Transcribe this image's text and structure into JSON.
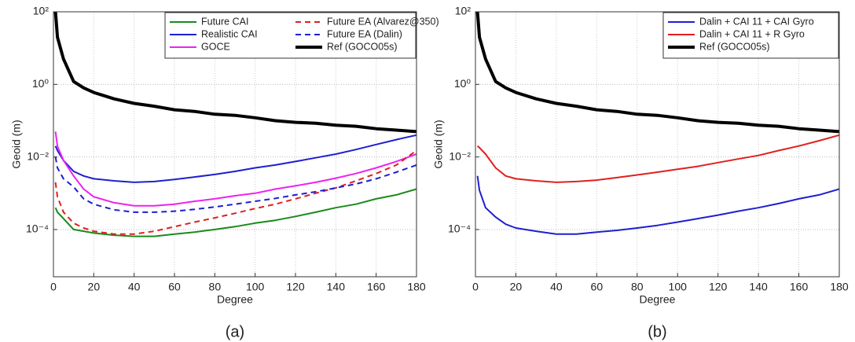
{
  "chart_data": [
    {
      "type": "line",
      "caption": "(a)",
      "xlabel": "Degree",
      "ylabel": "Geoid (m)",
      "log_y": true,
      "grid": true,
      "legend": "upper right",
      "legend_columns": 2,
      "x": [
        1,
        2,
        5,
        10,
        15,
        20,
        30,
        40,
        50,
        60,
        70,
        80,
        90,
        100,
        110,
        120,
        130,
        140,
        150,
        160,
        170,
        180
      ],
      "xlim": [
        0,
        180
      ],
      "xticks": [
        0,
        20,
        40,
        60,
        80,
        100,
        120,
        140,
        160,
        180
      ],
      "ylim": [
        5e-06,
        100
      ],
      "yticks": [
        {
          "value": 0.0001,
          "label": "10⁻⁴"
        },
        {
          "value": 0.01,
          "label": "10⁻²"
        },
        {
          "value": 1,
          "label": "10⁰"
        },
        {
          "value": 100,
          "label": "10²"
        }
      ],
      "series": [
        {
          "name": "Future CAI",
          "color": "#1a8a1a",
          "dashed": false,
          "linewidth": 2,
          "values": [
            0.0004,
            0.0003,
            0.0002,
            0.0001,
            9e-05,
            8e-05,
            7e-05,
            6.5e-05,
            6.5e-05,
            7.5e-05,
            8.5e-05,
            0.0001,
            0.00012,
            0.00015,
            0.00018,
            0.00023,
            0.0003,
            0.0004,
            0.0005,
            0.0007,
            0.0009,
            0.0013
          ]
        },
        {
          "name": "Realistic CAI",
          "color": "#1f1fd0",
          "dashed": false,
          "linewidth": 2,
          "values": [
            0.02,
            0.015,
            0.008,
            0.004,
            0.003,
            0.0025,
            0.0022,
            0.002,
            0.0021,
            0.0024,
            0.0028,
            0.0033,
            0.004,
            0.005,
            0.006,
            0.0075,
            0.0095,
            0.012,
            0.016,
            0.022,
            0.03,
            0.04
          ]
        },
        {
          "name": "GOCE",
          "color": "#ee22ee",
          "dashed": false,
          "linewidth": 2,
          "values": [
            0.05,
            0.02,
            0.008,
            0.003,
            0.0013,
            0.0008,
            0.00055,
            0.00045,
            0.00045,
            0.0005,
            0.0006,
            0.0007,
            0.00085,
            0.001,
            0.0013,
            0.0016,
            0.002,
            0.0026,
            0.0035,
            0.005,
            0.0075,
            0.012
          ]
        },
        {
          "name": "Future EA (Alvarez@350)",
          "color": "#e02020",
          "dashed": true,
          "linewidth": 2,
          "values": [
            0.002,
            0.0008,
            0.0003,
            0.00015,
            0.00011,
            9e-05,
            7.5e-05,
            7.5e-05,
            9e-05,
            0.00012,
            0.00016,
            0.00021,
            0.00028,
            0.00038,
            0.0005,
            0.0007,
            0.001,
            0.0014,
            0.0022,
            0.0035,
            0.006,
            0.015
          ]
        },
        {
          "name": "Future EA (Dalin)",
          "color": "#1f1fd0",
          "dashed": true,
          "linewidth": 2,
          "values": [
            0.01,
            0.005,
            0.0025,
            0.0015,
            0.0007,
            0.0005,
            0.00035,
            0.0003,
            0.0003,
            0.00032,
            0.00036,
            0.00042,
            0.0005,
            0.0006,
            0.00072,
            0.0009,
            0.0011,
            0.0014,
            0.0018,
            0.0025,
            0.0038,
            0.006
          ]
        },
        {
          "name": "Ref (GOCO05s)",
          "color": "#000000",
          "dashed": false,
          "linewidth": 4,
          "values": [
            100,
            20,
            5,
            1.2,
            0.8,
            0.6,
            0.4,
            0.3,
            0.25,
            0.2,
            0.18,
            0.15,
            0.14,
            0.12,
            0.1,
            0.09,
            0.085,
            0.075,
            0.07,
            0.06,
            0.055,
            0.05
          ]
        }
      ]
    },
    {
      "type": "line",
      "caption": "(b)",
      "xlabel": "Degree",
      "ylabel": "Geoid (m)",
      "log_y": true,
      "grid": true,
      "legend": "upper right",
      "legend_columns": 1,
      "x": [
        1,
        2,
        5,
        10,
        15,
        20,
        30,
        40,
        50,
        60,
        70,
        80,
        90,
        100,
        110,
        120,
        130,
        140,
        150,
        160,
        170,
        180
      ],
      "xlim": [
        0,
        180
      ],
      "xticks": [
        0,
        20,
        40,
        60,
        80,
        100,
        120,
        140,
        160,
        180
      ],
      "ylim": [
        5e-06,
        100
      ],
      "yticks": [
        {
          "value": 0.0001,
          "label": "10⁻⁴"
        },
        {
          "value": 0.01,
          "label": "10⁻²"
        },
        {
          "value": 1,
          "label": "10⁰"
        },
        {
          "value": 100,
          "label": "10²"
        }
      ],
      "series": [
        {
          "name": "Dalin + CAI 11 + CAI Gyro",
          "color": "#1f1fd0",
          "dashed": false,
          "linewidth": 2,
          "values": [
            0.003,
            0.0012,
            0.0004,
            0.00022,
            0.00014,
            0.00011,
            9e-05,
            7.5e-05,
            7.5e-05,
            8.5e-05,
            9.5e-05,
            0.00011,
            0.00013,
            0.00016,
            0.0002,
            0.00025,
            0.00032,
            0.0004,
            0.00052,
            0.0007,
            0.0009,
            0.0013
          ]
        },
        {
          "name": "Dalin + CAI 11 + R Gyro",
          "color": "#e02020",
          "dashed": false,
          "linewidth": 2,
          "values": [
            0.02,
            0.018,
            0.012,
            0.005,
            0.003,
            0.0025,
            0.0022,
            0.002,
            0.0021,
            0.0023,
            0.0027,
            0.0032,
            0.0038,
            0.0046,
            0.0055,
            0.007,
            0.0088,
            0.011,
            0.015,
            0.02,
            0.028,
            0.04
          ]
        },
        {
          "name": "Ref (GOCO05s)",
          "color": "#000000",
          "dashed": false,
          "linewidth": 4,
          "values": [
            100,
            20,
            5,
            1.2,
            0.8,
            0.6,
            0.4,
            0.3,
            0.25,
            0.2,
            0.18,
            0.15,
            0.14,
            0.12,
            0.1,
            0.09,
            0.085,
            0.075,
            0.07,
            0.06,
            0.055,
            0.05
          ]
        }
      ]
    }
  ]
}
